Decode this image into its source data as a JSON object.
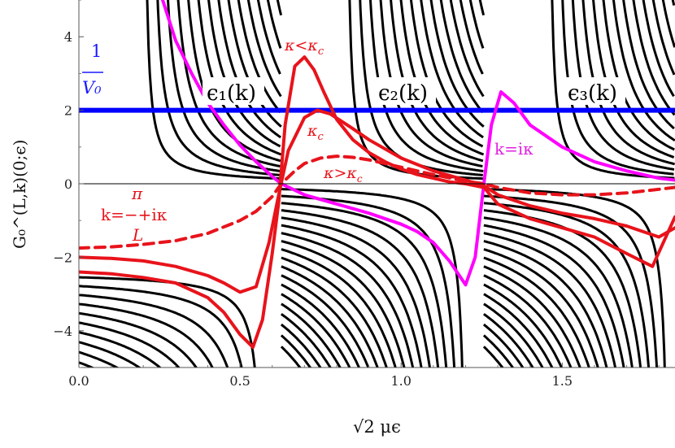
{
  "chart_data": {
    "type": "line",
    "xlim": [
      0,
      1.85
    ],
    "ylim": [
      -5,
      5
    ],
    "x_ticks": [
      0.0,
      0.5,
      1.0,
      1.5
    ],
    "x_tick_labels": [
      "0.0",
      "0.5",
      "1.0",
      "1.5"
    ],
    "y_ticks": [
      -4,
      -2,
      0,
      2,
      4
    ],
    "y_tick_labels": [
      "−4",
      "−2",
      "0",
      "2",
      "4"
    ],
    "xlabel": "√2 μϵ",
    "ylabel": "G₀^(L,k)(0;ϵ)",
    "grid": false,
    "period": 0.6283,
    "band_labels": [
      "ϵ₁(k)",
      "ϵ₂(k)",
      "ϵ₃(k)"
    ],
    "annotations": {
      "inv_v0_top": "1",
      "inv_v0_bottom": "V₀",
      "kappa_less": "κ<κ",
      "kappa_less_sub": "c",
      "kappa_c": "κ",
      "kappa_c_sub": "c",
      "kappa_greater": "κ>κ",
      "kappa_greater_sub": "c",
      "k_i_kappa": "k=iκ",
      "k_pi_top": "π",
      "k_pi_mid": "k=−+iκ",
      "k_pi_bottom": "L"
    },
    "series": [
      {
        "color": "#0000ff",
        "x": [
          0.0,
          1.85
        ],
        "y": [
          2.0,
          2.0
        ]
      },
      {
        "color": "#ff00ff",
        "x": [
          0.26,
          0.3,
          0.35,
          0.4,
          0.45,
          0.5,
          0.55,
          0.6,
          0.628,
          0.7,
          0.8,
          0.9,
          1.0,
          1.05,
          1.1,
          1.15,
          1.2,
          1.23,
          1.257,
          1.28,
          1.31,
          1.35,
          1.4,
          1.5,
          1.6,
          1.7,
          1.8,
          1.85
        ],
        "y": [
          5.0,
          3.9,
          3.0,
          2.2,
          1.6,
          1.05,
          0.6,
          0.2,
          0.0,
          -0.3,
          -0.55,
          -0.8,
          -1.1,
          -1.3,
          -1.6,
          -2.1,
          -2.75,
          -2.0,
          0.0,
          1.6,
          2.5,
          2.2,
          1.6,
          1.0,
          0.6,
          0.35,
          0.15,
          0.1
        ]
      },
      {
        "color": "#e8131b",
        "x": [
          0.0,
          0.1,
          0.2,
          0.3,
          0.4,
          0.45,
          0.5,
          0.54,
          0.57,
          0.6,
          0.62,
          0.64,
          0.67,
          0.7,
          0.73,
          0.76,
          0.8,
          0.85,
          0.9,
          0.95,
          1.0,
          1.05,
          1.1,
          1.15,
          1.2,
          1.257,
          1.3,
          1.4,
          1.5,
          1.6,
          1.7,
          1.78,
          1.85
        ],
        "y": [
          -2.4,
          -2.45,
          -2.55,
          -2.7,
          -3.1,
          -3.5,
          -4.1,
          -4.45,
          -3.7,
          -1.9,
          -0.5,
          1.6,
          3.2,
          3.45,
          3.1,
          2.5,
          1.75,
          1.2,
          0.85,
          0.6,
          0.4,
          0.25,
          0.15,
          0.05,
          0.0,
          -0.1,
          -0.55,
          -0.95,
          -1.2,
          -1.45,
          -1.9,
          -2.25,
          -0.9
        ]
      },
      {
        "color": "#e8131b",
        "x": [
          0.0,
          0.1,
          0.2,
          0.3,
          0.4,
          0.45,
          0.5,
          0.55,
          0.59,
          0.62,
          0.65,
          0.7,
          0.74,
          0.78,
          0.85,
          0.9,
          1.0,
          1.1,
          1.2,
          1.257,
          1.3,
          1.4,
          1.5,
          1.6,
          1.7,
          1.8,
          1.85
        ],
        "y": [
          -2.0,
          -2.03,
          -2.1,
          -2.25,
          -2.5,
          -2.7,
          -2.95,
          -2.8,
          -1.6,
          -0.3,
          0.9,
          1.8,
          2.0,
          1.9,
          1.5,
          1.2,
          0.7,
          0.35,
          0.1,
          -0.05,
          -0.3,
          -0.6,
          -0.8,
          -0.95,
          -1.15,
          -1.45,
          -1.2
        ]
      },
      {
        "color": "#e8131b",
        "dashed": true,
        "x": [
          0.0,
          0.1,
          0.2,
          0.3,
          0.4,
          0.5,
          0.55,
          0.6,
          0.628,
          0.67,
          0.7,
          0.75,
          0.8,
          0.85,
          0.9,
          1.0,
          1.1,
          1.2,
          1.257,
          1.3,
          1.4,
          1.5,
          1.6,
          1.7,
          1.8,
          1.85
        ],
        "y": [
          -1.75,
          -1.72,
          -1.65,
          -1.55,
          -1.35,
          -1.0,
          -0.75,
          -0.35,
          0.0,
          0.35,
          0.55,
          0.7,
          0.75,
          0.72,
          0.65,
          0.45,
          0.25,
          0.07,
          0.0,
          -0.1,
          -0.25,
          -0.3,
          -0.3,
          -0.25,
          -0.15,
          -0.1
        ]
      }
    ],
    "black_family": {
      "color": "#000000",
      "curve_count": 19,
      "y_range": [
        -5,
        5
      ]
    }
  }
}
